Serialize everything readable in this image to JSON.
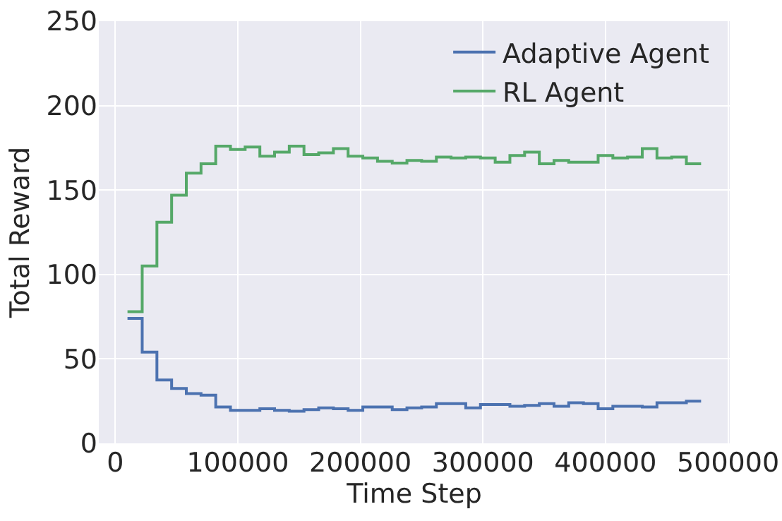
{
  "chart_data": {
    "type": "step",
    "xlabel": "Time Step",
    "ylabel": "Total Reward",
    "x": [
      10000,
      22000,
      34000,
      46000,
      58000,
      70000,
      82000,
      94000,
      106000,
      118000,
      130000,
      142000,
      154000,
      166000,
      178000,
      190000,
      202000,
      214000,
      226000,
      238000,
      250000,
      262000,
      274000,
      286000,
      298000,
      310000,
      322000,
      334000,
      346000,
      358000,
      370000,
      382000,
      394000,
      406000,
      418000,
      430000,
      442000,
      454000,
      466000,
      478000
    ],
    "series": [
      {
        "name": "Adaptive Agent",
        "color": "#4c72b0",
        "values": [
          74,
          54,
          37.5,
          32.5,
          29.5,
          28.5,
          21.5,
          19.5,
          19.5,
          20.5,
          19.5,
          19,
          20,
          21,
          20.5,
          19.5,
          21.5,
          21.5,
          20,
          21,
          21.5,
          23.5,
          23.5,
          21,
          23,
          23,
          22,
          22.5,
          23.5,
          22,
          24,
          23.5,
          20.5,
          22,
          22,
          21.5,
          24,
          24,
          25,
          25
        ]
      },
      {
        "name": "RL Agent",
        "color": "#55a868",
        "values": [
          78,
          105,
          131,
          147,
          160,
          165.5,
          176,
          174,
          175.5,
          170,
          172.5,
          176,
          171,
          172,
          174.5,
          170,
          169,
          167,
          166,
          167.5,
          167,
          169.5,
          169,
          169.5,
          169,
          166.5,
          170.5,
          172.5,
          165.5,
          167.5,
          166.5,
          166.5,
          170.5,
          169,
          169.5,
          174.5,
          169,
          169.5,
          165.5,
          165.5
        ]
      }
    ],
    "xlim": [
      -13400,
      501400
    ],
    "xticks": [
      0,
      100000,
      200000,
      300000,
      400000,
      500000
    ],
    "ylim": [
      0,
      250
    ],
    "yticks": [
      0,
      50,
      100,
      150,
      200,
      250
    ],
    "grid": true,
    "legend": "top right",
    "line_style": "solid"
  }
}
